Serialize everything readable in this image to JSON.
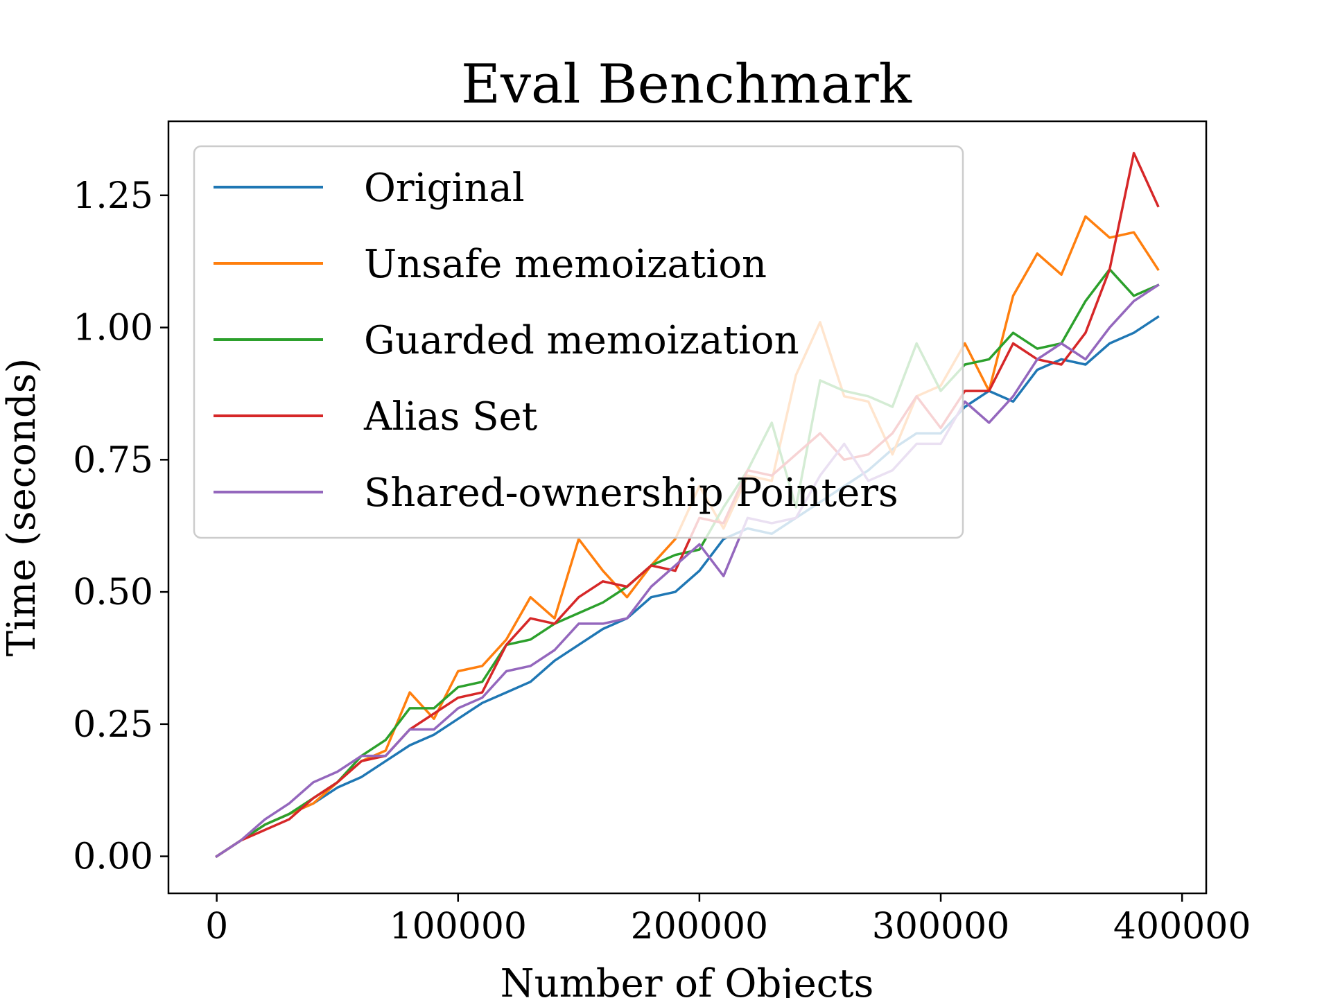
{
  "chart_data": {
    "type": "line",
    "title": "Eval Benchmark",
    "xlabel": "Number of Objects",
    "ylabel": "Time (seconds)",
    "xlim": [
      -20000,
      410000
    ],
    "ylim": [
      -0.07,
      1.39
    ],
    "x_ticks": [
      0,
      100000,
      200000,
      300000,
      400000
    ],
    "x_tick_labels": [
      "0",
      "100000",
      "200000",
      "300000",
      "400000"
    ],
    "y_ticks": [
      0,
      0.25,
      0.5,
      0.75,
      1.0,
      1.25
    ],
    "y_tick_labels": [
      "0.00",
      "0.25",
      "0.50",
      "0.75",
      "1.00",
      "1.25"
    ],
    "grid": false,
    "legend_position": "upper-left",
    "x": [
      0,
      10000,
      20000,
      30000,
      40000,
      50000,
      60000,
      70000,
      80000,
      90000,
      100000,
      110000,
      120000,
      130000,
      140000,
      150000,
      160000,
      170000,
      180000,
      190000,
      200000,
      210000,
      220000,
      230000,
      240000,
      250000,
      260000,
      270000,
      280000,
      290000,
      300000,
      310000,
      320000,
      330000,
      340000,
      350000,
      360000,
      370000,
      380000,
      390000
    ],
    "series": [
      {
        "name": "Original",
        "color": "#1f77b4",
        "values": [
          0.0,
          0.03,
          0.06,
          0.08,
          0.1,
          0.13,
          0.15,
          0.18,
          0.21,
          0.23,
          0.26,
          0.29,
          0.31,
          0.33,
          0.37,
          0.4,
          0.43,
          0.45,
          0.49,
          0.5,
          0.54,
          0.6,
          0.62,
          0.61,
          0.64,
          0.67,
          0.7,
          0.73,
          0.77,
          0.8,
          0.8,
          0.85,
          0.88,
          0.86,
          0.92,
          0.94,
          0.93,
          0.97,
          0.99,
          1.02
        ]
      },
      {
        "name": "Unsafe memoization",
        "color": "#ff7f0e",
        "values": [
          0.0,
          0.03,
          0.06,
          0.08,
          0.1,
          0.14,
          0.18,
          0.2,
          0.31,
          0.26,
          0.35,
          0.36,
          0.41,
          0.49,
          0.45,
          0.6,
          0.54,
          0.49,
          0.55,
          0.6,
          0.7,
          0.62,
          0.72,
          0.71,
          0.91,
          1.01,
          0.87,
          0.86,
          0.76,
          0.87,
          0.89,
          0.97,
          0.88,
          1.06,
          1.14,
          1.1,
          1.21,
          1.17,
          1.18,
          1.11
        ]
      },
      {
        "name": "Guarded memoization",
        "color": "#2ca02c",
        "values": [
          0.0,
          0.03,
          0.06,
          0.08,
          0.11,
          0.14,
          0.19,
          0.22,
          0.28,
          0.28,
          0.32,
          0.33,
          0.4,
          0.41,
          0.44,
          0.46,
          0.48,
          0.51,
          0.55,
          0.57,
          0.58,
          0.66,
          0.73,
          0.82,
          0.66,
          0.9,
          0.88,
          0.87,
          0.85,
          0.97,
          0.88,
          0.93,
          0.94,
          0.99,
          0.96,
          0.97,
          1.05,
          1.11,
          1.06,
          1.08
        ]
      },
      {
        "name": "Alias Set",
        "color": "#d62728",
        "values": [
          0.0,
          0.03,
          0.05,
          0.07,
          0.11,
          0.14,
          0.18,
          0.19,
          0.24,
          0.27,
          0.3,
          0.31,
          0.4,
          0.45,
          0.44,
          0.49,
          0.52,
          0.51,
          0.55,
          0.54,
          0.64,
          0.63,
          0.73,
          0.72,
          0.76,
          0.8,
          0.75,
          0.76,
          0.8,
          0.87,
          0.81,
          0.88,
          0.88,
          0.97,
          0.94,
          0.93,
          0.99,
          1.11,
          1.33,
          1.23
        ]
      },
      {
        "name": "Shared-ownership Pointers",
        "color": "#9467bd",
        "values": [
          0.0,
          0.03,
          0.07,
          0.1,
          0.14,
          0.16,
          0.19,
          0.19,
          0.24,
          0.24,
          0.28,
          0.3,
          0.35,
          0.36,
          0.39,
          0.44,
          0.44,
          0.45,
          0.51,
          0.55,
          0.59,
          0.53,
          0.64,
          0.63,
          0.64,
          0.72,
          0.78,
          0.71,
          0.73,
          0.78,
          0.78,
          0.86,
          0.82,
          0.87,
          0.94,
          0.97,
          0.94,
          1.0,
          1.05,
          1.08
        ]
      }
    ]
  }
}
